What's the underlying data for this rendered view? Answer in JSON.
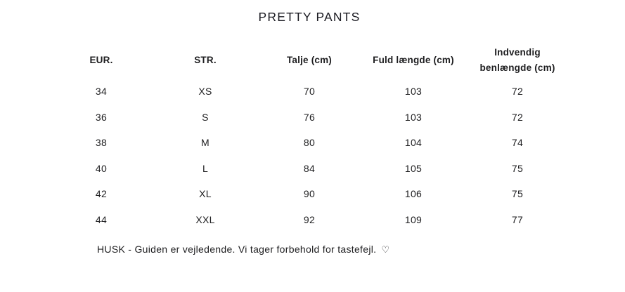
{
  "title": "PRETTY PANTS",
  "chart_data": {
    "type": "table",
    "title": "PRETTY PANTS",
    "columns": [
      "EUR.",
      "STR.",
      "Talje (cm)",
      "Fuld længde (cm)",
      "Indvendig benlængde (cm)"
    ],
    "rows": [
      [
        "34",
        "XS",
        "70",
        "103",
        "72"
      ],
      [
        "36",
        "S",
        "76",
        "103",
        "72"
      ],
      [
        "38",
        "M",
        "80",
        "104",
        "74"
      ],
      [
        "40",
        "L",
        "84",
        "105",
        "75"
      ],
      [
        "42",
        "XL",
        "90",
        "106",
        "75"
      ],
      [
        "44",
        "XXL",
        "92",
        "109",
        "77"
      ]
    ],
    "layout_hints": {
      "grid": "off",
      "borders": "none",
      "alignment": "center"
    }
  },
  "footer": {
    "note": "HUSK - Guiden er vejledende. Vi tager forbehold for tastefejl.",
    "heart_icon": "♡"
  },
  "colors": {
    "text": "#1d1d1f",
    "background": "#ffffff"
  }
}
